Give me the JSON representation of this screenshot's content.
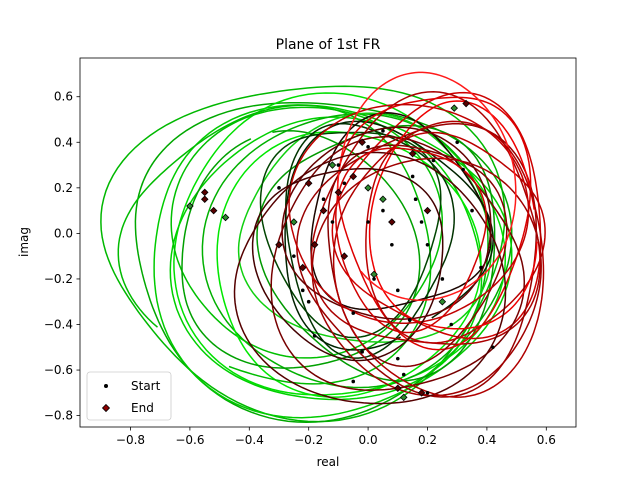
{
  "chart_data": {
    "type": "line",
    "title": "Plane of 1st FR",
    "xlabel": "real",
    "ylabel": "imag",
    "xlim": [
      -0.97,
      0.7
    ],
    "ylim": [
      -0.85,
      0.77
    ],
    "xticks": [
      -0.8,
      -0.6,
      -0.4,
      -0.2,
      0.0,
      0.2,
      0.4,
      0.6
    ],
    "xtick_labels": [
      "−0.8",
      "−0.6",
      "−0.4",
      "−0.2",
      "0.0",
      "0.2",
      "0.4",
      "0.6"
    ],
    "yticks": [
      -0.8,
      -0.6,
      -0.4,
      -0.2,
      0.0,
      0.2,
      0.4,
      0.6
    ],
    "ytick_labels": [
      "−0.8",
      "−0.6",
      "−0.4",
      "−0.2",
      "0.0",
      "0.2",
      "0.4",
      "0.6"
    ],
    "grid": false,
    "legend": {
      "placement": "lower-left",
      "entries": [
        {
          "label": "Start",
          "marker": "circle",
          "color": "#000000"
        },
        {
          "label": "End",
          "marker": "diamond",
          "color": "#8b0000"
        }
      ]
    },
    "loops": [
      {
        "cx": -0.22,
        "cy": -0.05,
        "rx": 0.67,
        "ry": 0.73,
        "start": 200,
        "sweep": 400,
        "color": "#00b800"
      },
      {
        "cx": -0.18,
        "cy": -0.08,
        "rx": 0.63,
        "ry": 0.7,
        "start": 140,
        "sweep": 380,
        "color": "#00a800"
      },
      {
        "cx": -0.15,
        "cy": -0.1,
        "rx": 0.6,
        "ry": 0.68,
        "start": 80,
        "sweep": 420,
        "color": "#00cc00"
      },
      {
        "cx": -0.1,
        "cy": -0.05,
        "rx": 0.55,
        "ry": 0.66,
        "start": 20,
        "sweep": 400,
        "color": "#00e000"
      },
      {
        "cx": -0.12,
        "cy": -0.12,
        "rx": 0.52,
        "ry": 0.62,
        "start": 300,
        "sweep": 380,
        "color": "#00d000"
      },
      {
        "cx": -0.05,
        "cy": -0.08,
        "rx": 0.48,
        "ry": 0.6,
        "start": 240,
        "sweep": 420,
        "color": "#00b000"
      },
      {
        "cx": -0.2,
        "cy": 0.0,
        "rx": 0.45,
        "ry": 0.55,
        "start": 60,
        "sweep": 360,
        "color": "#00c000"
      },
      {
        "cx": -0.08,
        "cy": -0.15,
        "rx": 0.44,
        "ry": 0.58,
        "start": 170,
        "sweep": 390,
        "color": "#00e800"
      },
      {
        "cx": -0.25,
        "cy": -0.1,
        "rx": 0.4,
        "ry": 0.52,
        "start": 110,
        "sweep": 350,
        "color": "#00a000"
      },
      {
        "cx": -0.02,
        "cy": 0.0,
        "rx": 0.42,
        "ry": 0.5,
        "start": 330,
        "sweep": 360,
        "color": "#10d010"
      },
      {
        "cx": -0.3,
        "cy": -0.05,
        "rx": 0.52,
        "ry": 0.6,
        "start": 250,
        "sweep": 330,
        "color": "#00bb00"
      },
      {
        "cx": 0.05,
        "cy": -0.05,
        "rx": 0.4,
        "ry": 0.55,
        "start": 10,
        "sweep": 380,
        "color": "#009900"
      },
      {
        "cx": -0.05,
        "cy": 0.05,
        "rx": 0.3,
        "ry": 0.45,
        "start": 200,
        "sweep": 360,
        "color": "#004400"
      },
      {
        "cx": 0.0,
        "cy": 0.0,
        "rx": 0.28,
        "ry": 0.5,
        "start": 90,
        "sweep": 380,
        "color": "#003300"
      },
      {
        "cx": 0.05,
        "cy": -0.02,
        "rx": 0.35,
        "ry": 0.48,
        "start": 300,
        "sweep": 340,
        "color": "#002200"
      },
      {
        "cx": 0.1,
        "cy": 0.05,
        "rx": 0.3,
        "ry": 0.42,
        "start": 150,
        "sweep": 380,
        "color": "#1a0500"
      },
      {
        "cx": 0.2,
        "cy": 0.0,
        "rx": 0.38,
        "ry": 0.55,
        "start": 30,
        "sweep": 400,
        "color": "#aa0000"
      },
      {
        "cx": 0.25,
        "cy": 0.05,
        "rx": 0.35,
        "ry": 0.52,
        "start": 270,
        "sweep": 380,
        "color": "#cc0000"
      },
      {
        "cx": 0.18,
        "cy": -0.1,
        "rx": 0.4,
        "ry": 0.58,
        "start": 120,
        "sweep": 420,
        "color": "#990000"
      },
      {
        "cx": 0.22,
        "cy": 0.1,
        "rx": 0.32,
        "ry": 0.55,
        "start": 200,
        "sweep": 360,
        "color": "#dd0000"
      },
      {
        "cx": 0.15,
        "cy": -0.05,
        "rx": 0.3,
        "ry": 0.48,
        "start": 340,
        "sweep": 400,
        "color": "#880000"
      },
      {
        "cx": 0.28,
        "cy": 0.0,
        "rx": 0.3,
        "ry": 0.45,
        "start": 60,
        "sweep": 380,
        "color": "#bb0000"
      },
      {
        "cx": 0.1,
        "cy": -0.15,
        "rx": 0.42,
        "ry": 0.55,
        "start": 220,
        "sweep": 360,
        "color": "#770000"
      },
      {
        "cx": 0.3,
        "cy": 0.05,
        "rx": 0.28,
        "ry": 0.5,
        "start": 10,
        "sweep": 340,
        "color": "#ee0000"
      },
      {
        "cx": 0.08,
        "cy": 0.02,
        "rx": 0.35,
        "ry": 0.42,
        "start": 160,
        "sweep": 380,
        "color": "#660000"
      },
      {
        "cx": 0.2,
        "cy": -0.2,
        "rx": 0.38,
        "ry": 0.52,
        "start": 280,
        "sweep": 360,
        "color": "#a00000"
      },
      {
        "cx": 0.12,
        "cy": 0.08,
        "rx": 0.4,
        "ry": 0.48,
        "start": 100,
        "sweep": 400,
        "color": "#c00000"
      },
      {
        "cx": 0.18,
        "cy": 0.2,
        "rx": 0.3,
        "ry": 0.5,
        "start": 230,
        "sweep": 320,
        "color": "#ff1a1a"
      },
      {
        "cx": 0.0,
        "cy": -0.2,
        "rx": 0.45,
        "ry": 0.55,
        "start": 40,
        "sweep": 380,
        "color": "#550000"
      },
      {
        "cx": 0.25,
        "cy": -0.1,
        "rx": 0.35,
        "ry": 0.6,
        "start": 180,
        "sweep": 360,
        "color": "#b00000"
      },
      {
        "cx": -0.05,
        "cy": -0.1,
        "rx": 0.32,
        "ry": 0.42,
        "start": 300,
        "sweep": 400,
        "color": "#440000"
      },
      {
        "cx": 0.15,
        "cy": 0.0,
        "rx": 0.25,
        "ry": 0.4,
        "start": 70,
        "sweep": 380,
        "color": "#d00000"
      }
    ],
    "start_points": [
      [
        0.42,
        -0.5
      ],
      [
        -0.05,
        -0.65
      ],
      [
        0.1,
        -0.55
      ],
      [
        0.2,
        -0.7
      ],
      [
        -0.1,
        0.3
      ],
      [
        0.05,
        0.1
      ],
      [
        0.15,
        0.25
      ],
      [
        -0.2,
        -0.3
      ],
      [
        0.3,
        0.4
      ],
      [
        0.35,
        0.1
      ],
      [
        -0.15,
        0.15
      ],
      [
        0.25,
        -0.2
      ],
      [
        0.0,
        0.05
      ],
      [
        0.1,
        -0.25
      ],
      [
        -0.25,
        -0.1
      ],
      [
        -0.05,
        -0.35
      ],
      [
        0.18,
        0.05
      ],
      [
        0.38,
        -0.15
      ],
      [
        -0.3,
        0.2
      ],
      [
        0.05,
        0.45
      ],
      [
        0.12,
        -0.62
      ],
      [
        -0.08,
        0.22
      ],
      [
        0.22,
        0.32
      ],
      [
        0.28,
        -0.4
      ],
      [
        -0.18,
        -0.45
      ],
      [
        0.02,
        -0.2
      ],
      [
        0.16,
        0.15
      ],
      [
        -0.12,
        0.05
      ],
      [
        0.08,
        -0.05
      ],
      [
        0.32,
        0.28
      ],
      [
        -0.22,
        -0.25
      ],
      [
        0.0,
        0.38
      ],
      [
        0.2,
        -0.05
      ],
      [
        -0.02,
        -0.52
      ],
      [
        0.14,
        -0.38
      ]
    ],
    "end_points": [
      [
        -0.6,
        0.12
      ],
      [
        -0.55,
        0.15
      ],
      [
        -0.52,
        0.1
      ],
      [
        -0.48,
        0.07
      ],
      [
        -0.55,
        0.18
      ],
      [
        0.33,
        0.57
      ],
      [
        0.29,
        0.55
      ],
      [
        -0.2,
        0.22
      ],
      [
        -0.15,
        0.1
      ],
      [
        -0.25,
        0.05
      ],
      [
        -0.1,
        0.18
      ],
      [
        -0.05,
        0.25
      ],
      [
        0.0,
        0.2
      ],
      [
        -0.18,
        -0.05
      ],
      [
        -0.22,
        -0.15
      ],
      [
        0.12,
        -0.72
      ],
      [
        0.18,
        -0.7
      ],
      [
        0.1,
        -0.68
      ],
      [
        0.05,
        0.15
      ],
      [
        -0.08,
        -0.1
      ],
      [
        0.15,
        0.35
      ],
      [
        -0.12,
        0.3
      ],
      [
        0.08,
        0.05
      ],
      [
        -0.3,
        -0.05
      ],
      [
        0.02,
        -0.18
      ],
      [
        -0.02,
        0.4
      ],
      [
        0.2,
        0.1
      ],
      [
        0.25,
        -0.3
      ]
    ]
  }
}
